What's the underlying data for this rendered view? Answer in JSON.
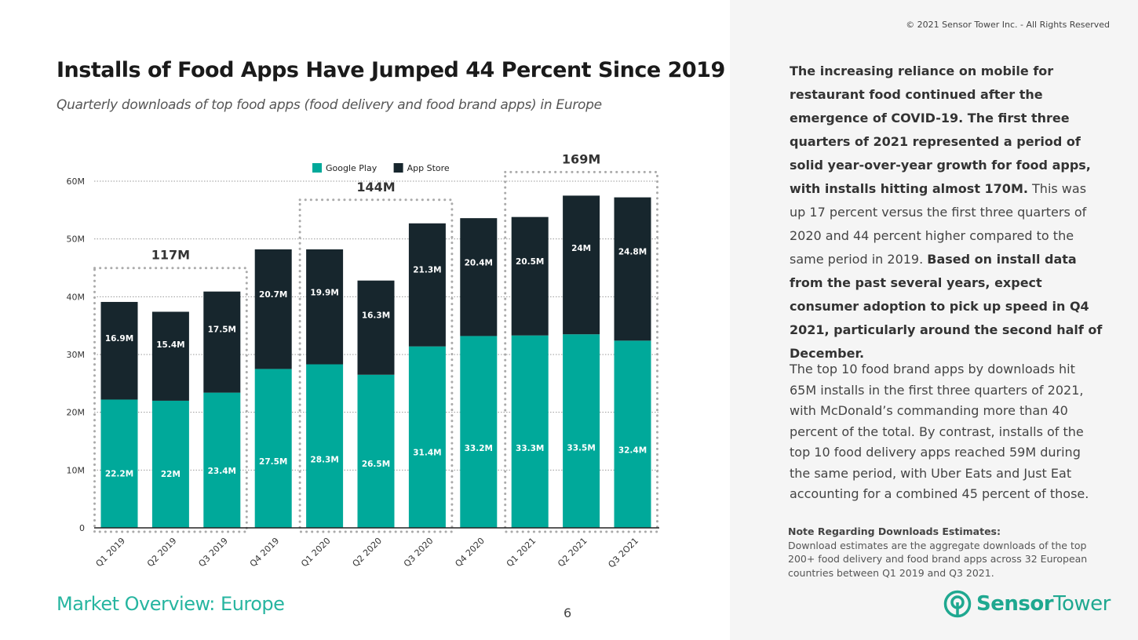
{
  "title": "Installs of Food Apps Have Jumped 44 Percent Since 2019",
  "subtitle": "Quarterly downloads of top food apps (food delivery and food brand apps) in Europe",
  "footer": {
    "section": "Market Overview: Europe",
    "page_number": "6"
  },
  "copyright": "© 2021 Sensor Tower Inc. - All Rights Reserved",
  "commentary": {
    "paragraph1": [
      {
        "text": "The increasing reliance on mobile for restaurant food continued after the emergence of COVID-19. The first three quarters of 2021 represented a period of solid year-over-year growth for food apps, with installs hitting almost 170M.",
        "bold": true
      },
      {
        "text": " This was up 17 percent versus the first three quarters of 2020 and 44 percent higher compared to the same period in 2019. ",
        "bold": false
      },
      {
        "text": "Based on install data from the past several years, expect consumer adoption to pick up speed in Q4 2021, particularly around the second half of December.",
        "bold": true
      }
    ],
    "paragraph2": "The top 10 food brand apps by downloads hit 65M installs in the first three quarters of 2021, with McDonald’s commanding more than 40 percent of the total. By contrast, installs of the top 10 food delivery apps reached 59M during the same period, with Uber Eats and Just Eat accounting for a combined 45 percent of those."
  },
  "note": {
    "heading": "Note Regarding Downloads Estimates:",
    "body": "Download estimates are the aggregate downloads of the top 200+ food delivery and food brand apps across 32 European countries between Q1 2019 and Q3 2021."
  },
  "logo": {
    "text": "SensorTower",
    "icon": "sensor-tower-logo-icon"
  },
  "chart_data": {
    "type": "bar",
    "stacked": true,
    "categories": [
      "Q1 2019",
      "Q2 2019",
      "Q3 2019",
      "Q4 2019",
      "Q1 2020",
      "Q2 2020",
      "Q3 2020",
      "Q4 2020",
      "Q1 2021",
      "Q2 2021",
      "Q3 2O21"
    ],
    "series": [
      {
        "name": "Google Play",
        "color": "#00a99a",
        "values": [
          22.2,
          22,
          23.4,
          27.5,
          28.3,
          26.5,
          31.4,
          33.2,
          33.3,
          33.5,
          32.4
        ],
        "labels": [
          "22.2M",
          "22M",
          "23.4M",
          "27.5M",
          "28.3M",
          "26.5M",
          "31.4M",
          "33.2M",
          "33.3M",
          "33.5M",
          "32.4M"
        ]
      },
      {
        "name": "App Store",
        "color": "#17262d",
        "values": [
          16.9,
          15.4,
          17.5,
          20.7,
          19.9,
          16.3,
          21.3,
          20.4,
          20.5,
          24,
          24.8
        ],
        "labels": [
          "16.9M",
          "15.4M",
          "17.5M",
          "20.7M",
          "19.9M",
          "16.3M",
          "21.3M",
          "20.4M",
          "20.5M",
          "24M",
          "24.8M"
        ]
      }
    ],
    "yticks": [
      {
        "v": 0,
        "label": "0"
      },
      {
        "v": 10,
        "label": "10M"
      },
      {
        "v": 20,
        "label": "20M"
      },
      {
        "v": 30,
        "label": "30M"
      },
      {
        "v": 40,
        "label": "40M"
      },
      {
        "v": 50,
        "label": "50M"
      },
      {
        "v": 60,
        "label": "60M"
      }
    ],
    "ylim": [
      0,
      60
    ],
    "grid": true,
    "legend": "top",
    "groups": [
      {
        "label": "117M",
        "from": 0,
        "to": 2
      },
      {
        "label": "144M",
        "from": 4,
        "to": 6
      },
      {
        "label": "169M",
        "from": 8,
        "to": 10
      }
    ]
  }
}
